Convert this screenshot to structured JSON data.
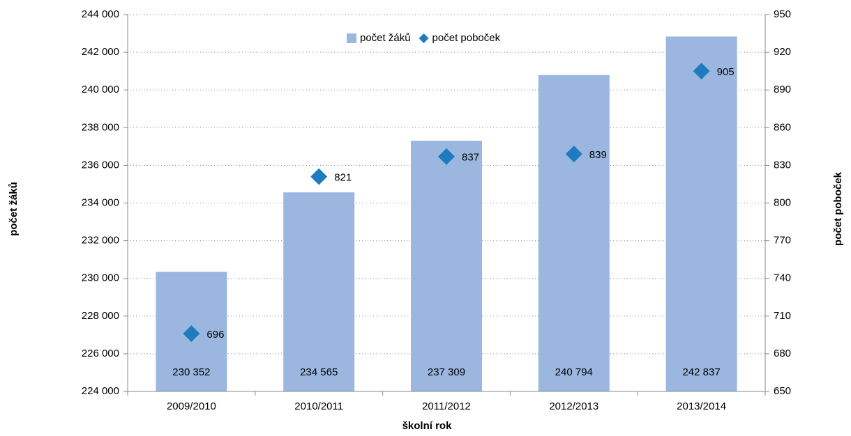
{
  "chart_data": {
    "type": "bar",
    "x_label": "školní rok",
    "y_label": "počet žáků",
    "y2_label": "počet poboček",
    "categories": [
      "2009/2010",
      "2010/2011",
      "2011/2012",
      "2012/2013",
      "2013/2014"
    ],
    "series": [
      {
        "name": "počet žáků",
        "type": "bar",
        "color": "#9bb7e0",
        "values": [
          230352,
          234565,
          237309,
          240794,
          242837
        ],
        "value_labels": [
          "230 352",
          "234 565",
          "237 309",
          "240 794",
          "242 837"
        ]
      },
      {
        "name": "počet poboček",
        "type": "scatter",
        "axis": "y2",
        "color": "#1f7bc0",
        "values": [
          696,
          821,
          837,
          839,
          905
        ]
      }
    ],
    "ylim": [
      224000,
      244000
    ],
    "yticks": [
      {
        "value": 224000,
        "label": "224 000"
      },
      {
        "value": 226000,
        "label": "226 000"
      },
      {
        "value": 228000,
        "label": "228 000"
      },
      {
        "value": 230000,
        "label": "230 000"
      },
      {
        "value": 232000,
        "label": "232 000"
      },
      {
        "value": 234000,
        "label": "234 000"
      },
      {
        "value": 236000,
        "label": "236 000"
      },
      {
        "value": 238000,
        "label": "238 000"
      },
      {
        "value": 240000,
        "label": "240 000"
      },
      {
        "value": 242000,
        "label": "242 000"
      },
      {
        "value": 244000,
        "label": "244 000"
      }
    ],
    "y2lim": [
      650,
      950
    ],
    "y2ticks": [
      650,
      680,
      710,
      740,
      770,
      800,
      830,
      860,
      890,
      920,
      950
    ],
    "grid": true,
    "legend": "top"
  }
}
